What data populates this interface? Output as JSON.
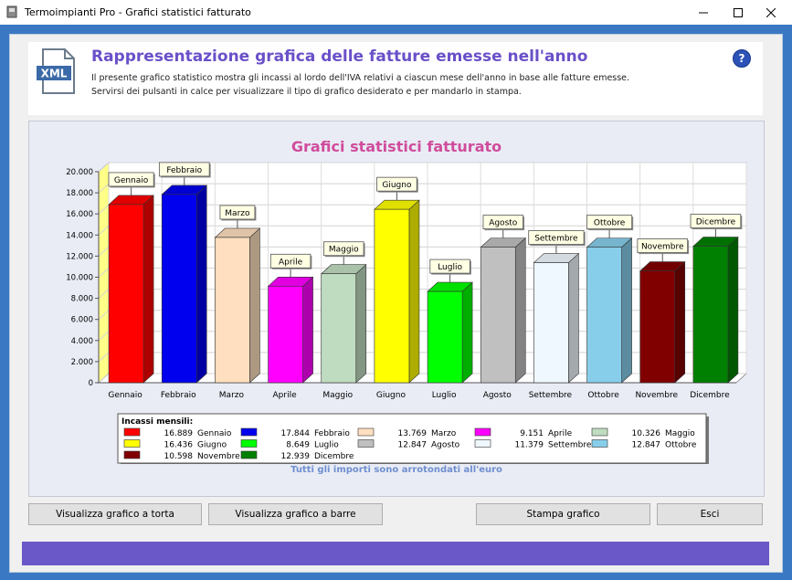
{
  "window": {
    "title": "Termoimpianti Pro  - Grafici statistici fatturato"
  },
  "header": {
    "title": "Rappresentazione grafica delle fatture emesse nell'anno",
    "line1": "Il presente grafico statistico mostra gli incassi al lordo dell'IVA relativi a ciascun mese dell'anno in base alle fatture emesse.",
    "line2": "Servirsi dei pulsanti in calce per visualizzare il tipo di grafico desiderato e per mandarlo in stampa.",
    "icon_text": "XML",
    "help": "?"
  },
  "note": "Tutti gli importi sono arrotondati all'euro",
  "buttons": {
    "pie": "Visualizza grafico a torta",
    "bar": "Visualizza grafico a barre",
    "print": "Stampa grafico",
    "exit": "Esci"
  },
  "colors": {
    "accent": "#6a50c8",
    "chart_title": "#d04c9c",
    "frame": "#3a78c4",
    "footer": "#6a58c8"
  },
  "chart_data": {
    "type": "bar",
    "title": "Grafici statistici fatturato",
    "ylim": [
      0,
      20000
    ],
    "yticks": [
      "0",
      "2.000",
      "4.000",
      "6.000",
      "8.000",
      "10.000",
      "12.000",
      "14.000",
      "16.000",
      "18.000",
      "20.000"
    ],
    "grid": true,
    "legend_title": "Incassi mensili:",
    "legend_position": "bottom",
    "categories": [
      "Gennaio",
      "Febbraio",
      "Marzo",
      "Aprile",
      "Maggio",
      "Giugno",
      "Luglio",
      "Agosto",
      "Settembre",
      "Ottobre",
      "Novembre",
      "Dicembre"
    ],
    "values": [
      16889,
      17844,
      13769,
      9151,
      10326,
      16436,
      8649,
      12847,
      11379,
      12847,
      10598,
      12939
    ],
    "value_labels": [
      "16.889",
      "17.844",
      "13.769",
      "9.151",
      "10.326",
      "16.436",
      "8.649",
      "12.847",
      "11.379",
      "12.847",
      "10.598",
      "12.939"
    ],
    "colors": [
      "#ff0000",
      "#0000ee",
      "#ffdfbf",
      "#ff00ff",
      "#c0dcc0",
      "#ffff00",
      "#00ff00",
      "#c0c0c0",
      "#f0f8ff",
      "#87ceeb",
      "#800000",
      "#008000"
    ]
  }
}
